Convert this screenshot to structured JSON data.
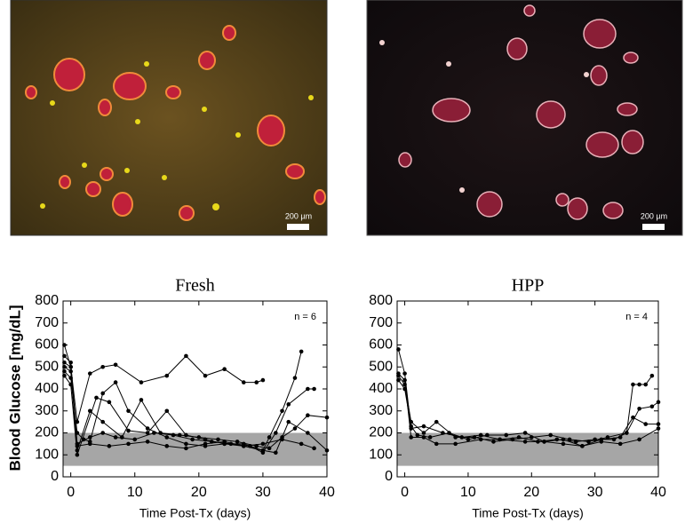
{
  "images": [
    {
      "scale_label": "200 µm"
    },
    {
      "scale_label": "200 µm"
    }
  ],
  "y_axis_label": "Blood Glucose [mg/dL]",
  "chart_data": [
    {
      "type": "line",
      "title": "Fresh",
      "annotation": "n = 6",
      "x_label": "Time Post-Tx (days)",
      "color": "#000000",
      "band_color": "#a6a6a6",
      "normal_range": [
        50,
        200
      ],
      "xlim": [
        -1.2,
        40
      ],
      "xticks": [
        0,
        10,
        20,
        30,
        40
      ],
      "ylim": [
        0,
        800
      ],
      "yticks": [
        0,
        100,
        200,
        300,
        400,
        500,
        600,
        700,
        800
      ],
      "series": [
        {
          "x": [
            -1,
            0,
            1,
            3,
            5,
            7,
            11,
            15,
            18,
            21,
            24,
            27,
            29,
            30
          ],
          "values": [
            520,
            500,
            250,
            470,
            500,
            510,
            430,
            460,
            550,
            460,
            490,
            430,
            430,
            440
          ]
        },
        {
          "x": [
            -1,
            0,
            1,
            2,
            3,
            5,
            7,
            9,
            12,
            15,
            18,
            21,
            24,
            27,
            30,
            31,
            33,
            35,
            36
          ],
          "values": [
            480,
            450,
            200,
            170,
            160,
            380,
            430,
            300,
            220,
            180,
            150,
            140,
            150,
            140,
            120,
            180,
            300,
            450,
            570
          ]
        },
        {
          "x": [
            -1,
            0,
            1,
            3,
            5,
            7,
            10,
            13,
            16,
            19,
            22,
            25,
            28,
            30,
            32,
            34,
            37,
            38
          ],
          "values": [
            550,
            520,
            150,
            180,
            200,
            180,
            170,
            200,
            190,
            170,
            160,
            150,
            140,
            110,
            200,
            330,
            400,
            400
          ]
        },
        {
          "x": [
            -1,
            0,
            1,
            3,
            5,
            8,
            11,
            14,
            17,
            20,
            23,
            26,
            29,
            31,
            33,
            35,
            37,
            40
          ],
          "values": [
            600,
            500,
            120,
            300,
            250,
            180,
            350,
            200,
            190,
            180,
            170,
            160,
            140,
            130,
            180,
            220,
            280,
            270
          ]
        },
        {
          "x": [
            -1,
            0,
            1,
            4,
            6,
            9,
            12,
            15,
            18,
            21,
            24,
            27,
            30,
            32,
            34,
            37,
            40
          ],
          "values": [
            460,
            420,
            100,
            360,
            340,
            210,
            200,
            300,
            190,
            170,
            150,
            150,
            120,
            110,
            250,
            200,
            120
          ]
        },
        {
          "x": [
            -1,
            0,
            1,
            3,
            6,
            9,
            12,
            15,
            18,
            21,
            24,
            27,
            30,
            33,
            36,
            38
          ],
          "values": [
            500,
            480,
            140,
            150,
            140,
            150,
            160,
            140,
            130,
            150,
            160,
            140,
            150,
            170,
            150,
            130
          ]
        }
      ]
    },
    {
      "type": "line",
      "title": "HPP",
      "annotation": "n = 4",
      "x_label": "Time Post-Tx (days)",
      "color": "#000000",
      "band_color": "#a6a6a6",
      "normal_range": [
        50,
        200
      ],
      "xlim": [
        -1.2,
        40
      ],
      "xticks": [
        0,
        10,
        20,
        30,
        40
      ],
      "ylim": [
        0,
        800
      ],
      "yticks": [
        0,
        100,
        200,
        300,
        400,
        500,
        600,
        700,
        800
      ],
      "series": [
        {
          "x": [
            -1,
            0,
            1,
            3,
            6,
            9,
            12,
            15,
            18,
            21,
            24,
            27,
            30,
            33,
            35,
            36,
            37,
            38,
            39
          ],
          "values": [
            580,
            470,
            220,
            230,
            200,
            180,
            190,
            170,
            180,
            160,
            170,
            160,
            170,
            170,
            200,
            420,
            420,
            420,
            460
          ]
        },
        {
          "x": [
            -1,
            0,
            1,
            3,
            5,
            8,
            11,
            14,
            17,
            20,
            23,
            26,
            29,
            32,
            35,
            37,
            39,
            40
          ],
          "values": [
            460,
            420,
            250,
            200,
            250,
            180,
            180,
            160,
            170,
            180,
            190,
            170,
            160,
            180,
            200,
            310,
            320,
            340
          ]
        },
        {
          "x": [
            -1,
            0,
            1,
            2,
            4,
            7,
            10,
            13,
            16,
            19,
            22,
            25,
            28,
            31,
            34,
            36,
            38,
            40
          ],
          "values": [
            440,
            400,
            230,
            190,
            180,
            200,
            170,
            190,
            190,
            200,
            160,
            150,
            140,
            170,
            180,
            270,
            240,
            240
          ]
        },
        {
          "x": [
            -1,
            0,
            1,
            3,
            5,
            8,
            12,
            15,
            19,
            22,
            25,
            28,
            31,
            34,
            37,
            40
          ],
          "values": [
            470,
            440,
            180,
            180,
            150,
            150,
            170,
            170,
            160,
            160,
            170,
            140,
            160,
            150,
            170,
            220
          ]
        }
      ]
    }
  ]
}
